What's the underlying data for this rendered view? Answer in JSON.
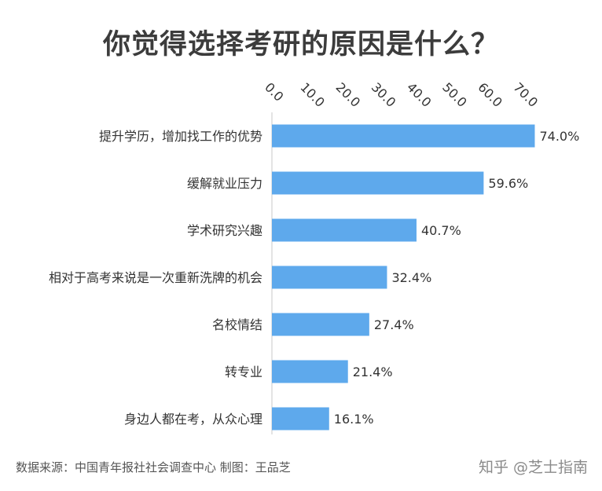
{
  "chart_data": {
    "type": "bar",
    "orientation": "horizontal",
    "title": "你觉得选择考研的原因是什么？",
    "categories": [
      "提升学历，增加找工作的优势",
      "缓解就业压力",
      "学术研究兴趣",
      "相对于高考来说是一次重新洗牌的机会",
      "名校情结",
      "转专业",
      "身边人都在考，从众心理"
    ],
    "values": [
      74.0,
      59.6,
      40.7,
      32.4,
      27.4,
      21.4,
      16.1
    ],
    "value_labels": [
      "74.0%",
      "59.6%",
      "40.7%",
      "32.4%",
      "27.4%",
      "21.4%",
      "16.1%"
    ],
    "x_ticks": [
      "0.0",
      "10.0",
      "20.0",
      "30.0",
      "40.0",
      "50.0",
      "60.0",
      "70.0"
    ],
    "xlim": [
      0,
      70
    ],
    "axis_position": "top",
    "bar_color": "#5ea9ec",
    "grid": false,
    "legend": "none"
  },
  "footer": {
    "source": "数据来源：中国青年报社社会调查中心 制图：王品芝",
    "watermark": "知乎 @芝士指南"
  }
}
